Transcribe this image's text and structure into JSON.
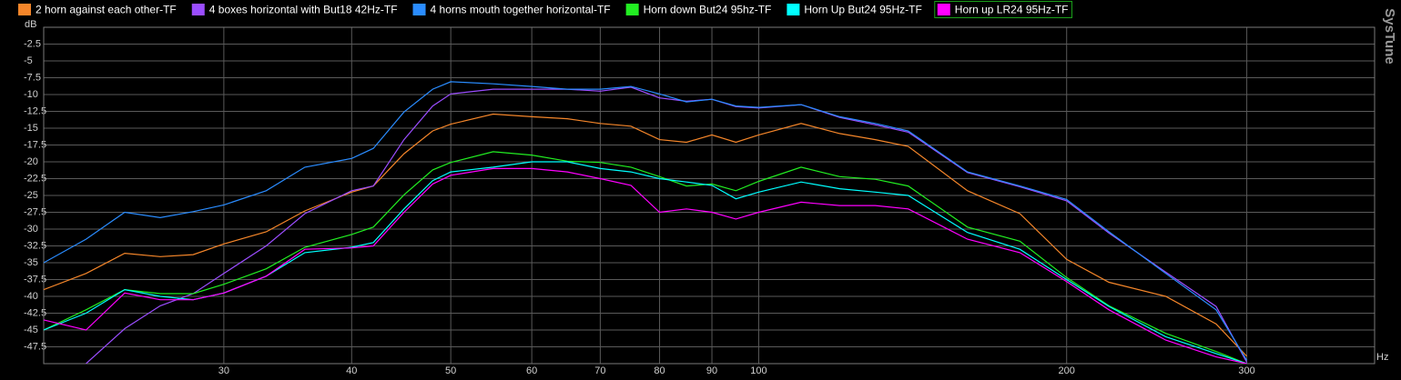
{
  "chart_data": {
    "type": "line",
    "y_label": "dB",
    "x_label": "Hz",
    "brand": "SysTune",
    "x_scale": "log",
    "grid": true,
    "legend": "top",
    "xlim": [
      20,
      400
    ],
    "ylim": [
      -50,
      0
    ],
    "xticks": [
      30,
      40,
      50,
      60,
      70,
      80,
      90,
      100,
      200,
      300
    ],
    "yticks": [
      -2.5,
      -5,
      -7.5,
      -10,
      -12.5,
      -15,
      -17.5,
      -20,
      -22.5,
      -25,
      -27.5,
      -30,
      -32.5,
      -35,
      -37.5,
      -40,
      -42.5,
      -45,
      -47.5
    ],
    "x": [
      20,
      22,
      24,
      26,
      28,
      30,
      33,
      36,
      40,
      42,
      45,
      48,
      50,
      55,
      60,
      65,
      70,
      75,
      80,
      85,
      90,
      95,
      100,
      110,
      120,
      130,
      140,
      160,
      180,
      200,
      220,
      250,
      280,
      300
    ],
    "series": [
      {
        "name": "2 horn against each other-TF",
        "color": "#f5862a",
        "values": [
          -39,
          -36.6,
          -33.6,
          -34.1,
          -33.8,
          -32.2,
          -30.4,
          -27.3,
          -24.5,
          -23.6,
          -18.8,
          -15.4,
          -14.4,
          -12.9,
          -13.3,
          -13.6,
          -14.3,
          -14.7,
          -16.7,
          -17.1,
          -16,
          -17.1,
          -16,
          -14.3,
          -15.8,
          -16.7,
          -17.7,
          -24.3,
          -27.7,
          -34.5,
          -37.9,
          -40,
          -44.1,
          -48.9
        ]
      },
      {
        "name": "4 boxes horizontal with But18 42Hz-TF",
        "color": "#9b4dff",
        "values": [
          null,
          -50,
          -44.8,
          -41.4,
          -39.6,
          -36.6,
          -32.5,
          -27.7,
          -24.3,
          -23.6,
          -16.7,
          -11.7,
          -9.9,
          -9.2,
          -9.2,
          -9.2,
          -9.5,
          -8.9,
          -10.5,
          -11,
          -10.7,
          -11.8,
          -12,
          -11.5,
          -13.4,
          -14.5,
          -15.6,
          -21.6,
          -23.7,
          -25.8,
          -30.6,
          -36.4,
          -41.5,
          -49.8
        ]
      },
      {
        "name": "4 horns mouth together horizontal-TF",
        "color": "#2a8cff",
        "values": [
          -35,
          -31.5,
          -27.5,
          -28.3,
          -27.4,
          -26.4,
          -24.3,
          -20.8,
          -19.5,
          -18,
          -12.6,
          -9.2,
          -8.1,
          -8.4,
          -8.8,
          -9.2,
          -9.2,
          -8.8,
          -9.9,
          -11.1,
          -10.7,
          -11.7,
          -11.9,
          -11.5,
          -13.3,
          -14.3,
          -15.4,
          -21.5,
          -23.6,
          -25.6,
          -30.4,
          -36.6,
          -42,
          -49.5
        ]
      },
      {
        "name": "Horn down But24 95hz-TF",
        "color": "#22ee22",
        "values": [
          -45,
          -42,
          -39,
          -39.6,
          -39.6,
          -38.2,
          -35.9,
          -32.7,
          -30.8,
          -29.7,
          -24.9,
          -21.2,
          -20.1,
          -18.5,
          -19,
          -19.9,
          -20.1,
          -20.8,
          -22.2,
          -23.6,
          -23.3,
          -24.3,
          -22.9,
          -20.8,
          -22.2,
          -22.6,
          -23.6,
          -29.7,
          -31.8,
          -37.2,
          -41.4,
          -45.5,
          -48.2,
          -50
        ]
      },
      {
        "name": "Horn Up But24 95Hz-TF",
        "color": "#00ffff",
        "values": [
          -45,
          -42.5,
          -39,
          -40,
          -40.5,
          -39.5,
          -37,
          -33.5,
          -32.7,
          -32,
          -27,
          -22.8,
          -21.5,
          -20.8,
          -20,
          -20,
          -21,
          -21.5,
          -22.5,
          -23,
          -23.5,
          -25.5,
          -24.5,
          -23,
          -24,
          -24.5,
          -25,
          -30.5,
          -33,
          -37.5,
          -41.5,
          -46,
          -48.5,
          -50
        ]
      },
      {
        "name": "Horn up LR24 95Hz-TF",
        "color": "#ff00ff",
        "values": [
          -43.5,
          -45,
          -39.5,
          -40.5,
          -40.5,
          -39.5,
          -37,
          -33,
          -32.8,
          -32.5,
          -27.5,
          -23.3,
          -22,
          -21,
          -21,
          -21.5,
          -22.5,
          -23.5,
          -27.5,
          -27,
          -27.5,
          -28.5,
          -27.5,
          -26,
          -26.5,
          -26.5,
          -27,
          -31.5,
          -33.5,
          -37.8,
          -42,
          -46.5,
          -49,
          -50
        ]
      }
    ]
  }
}
